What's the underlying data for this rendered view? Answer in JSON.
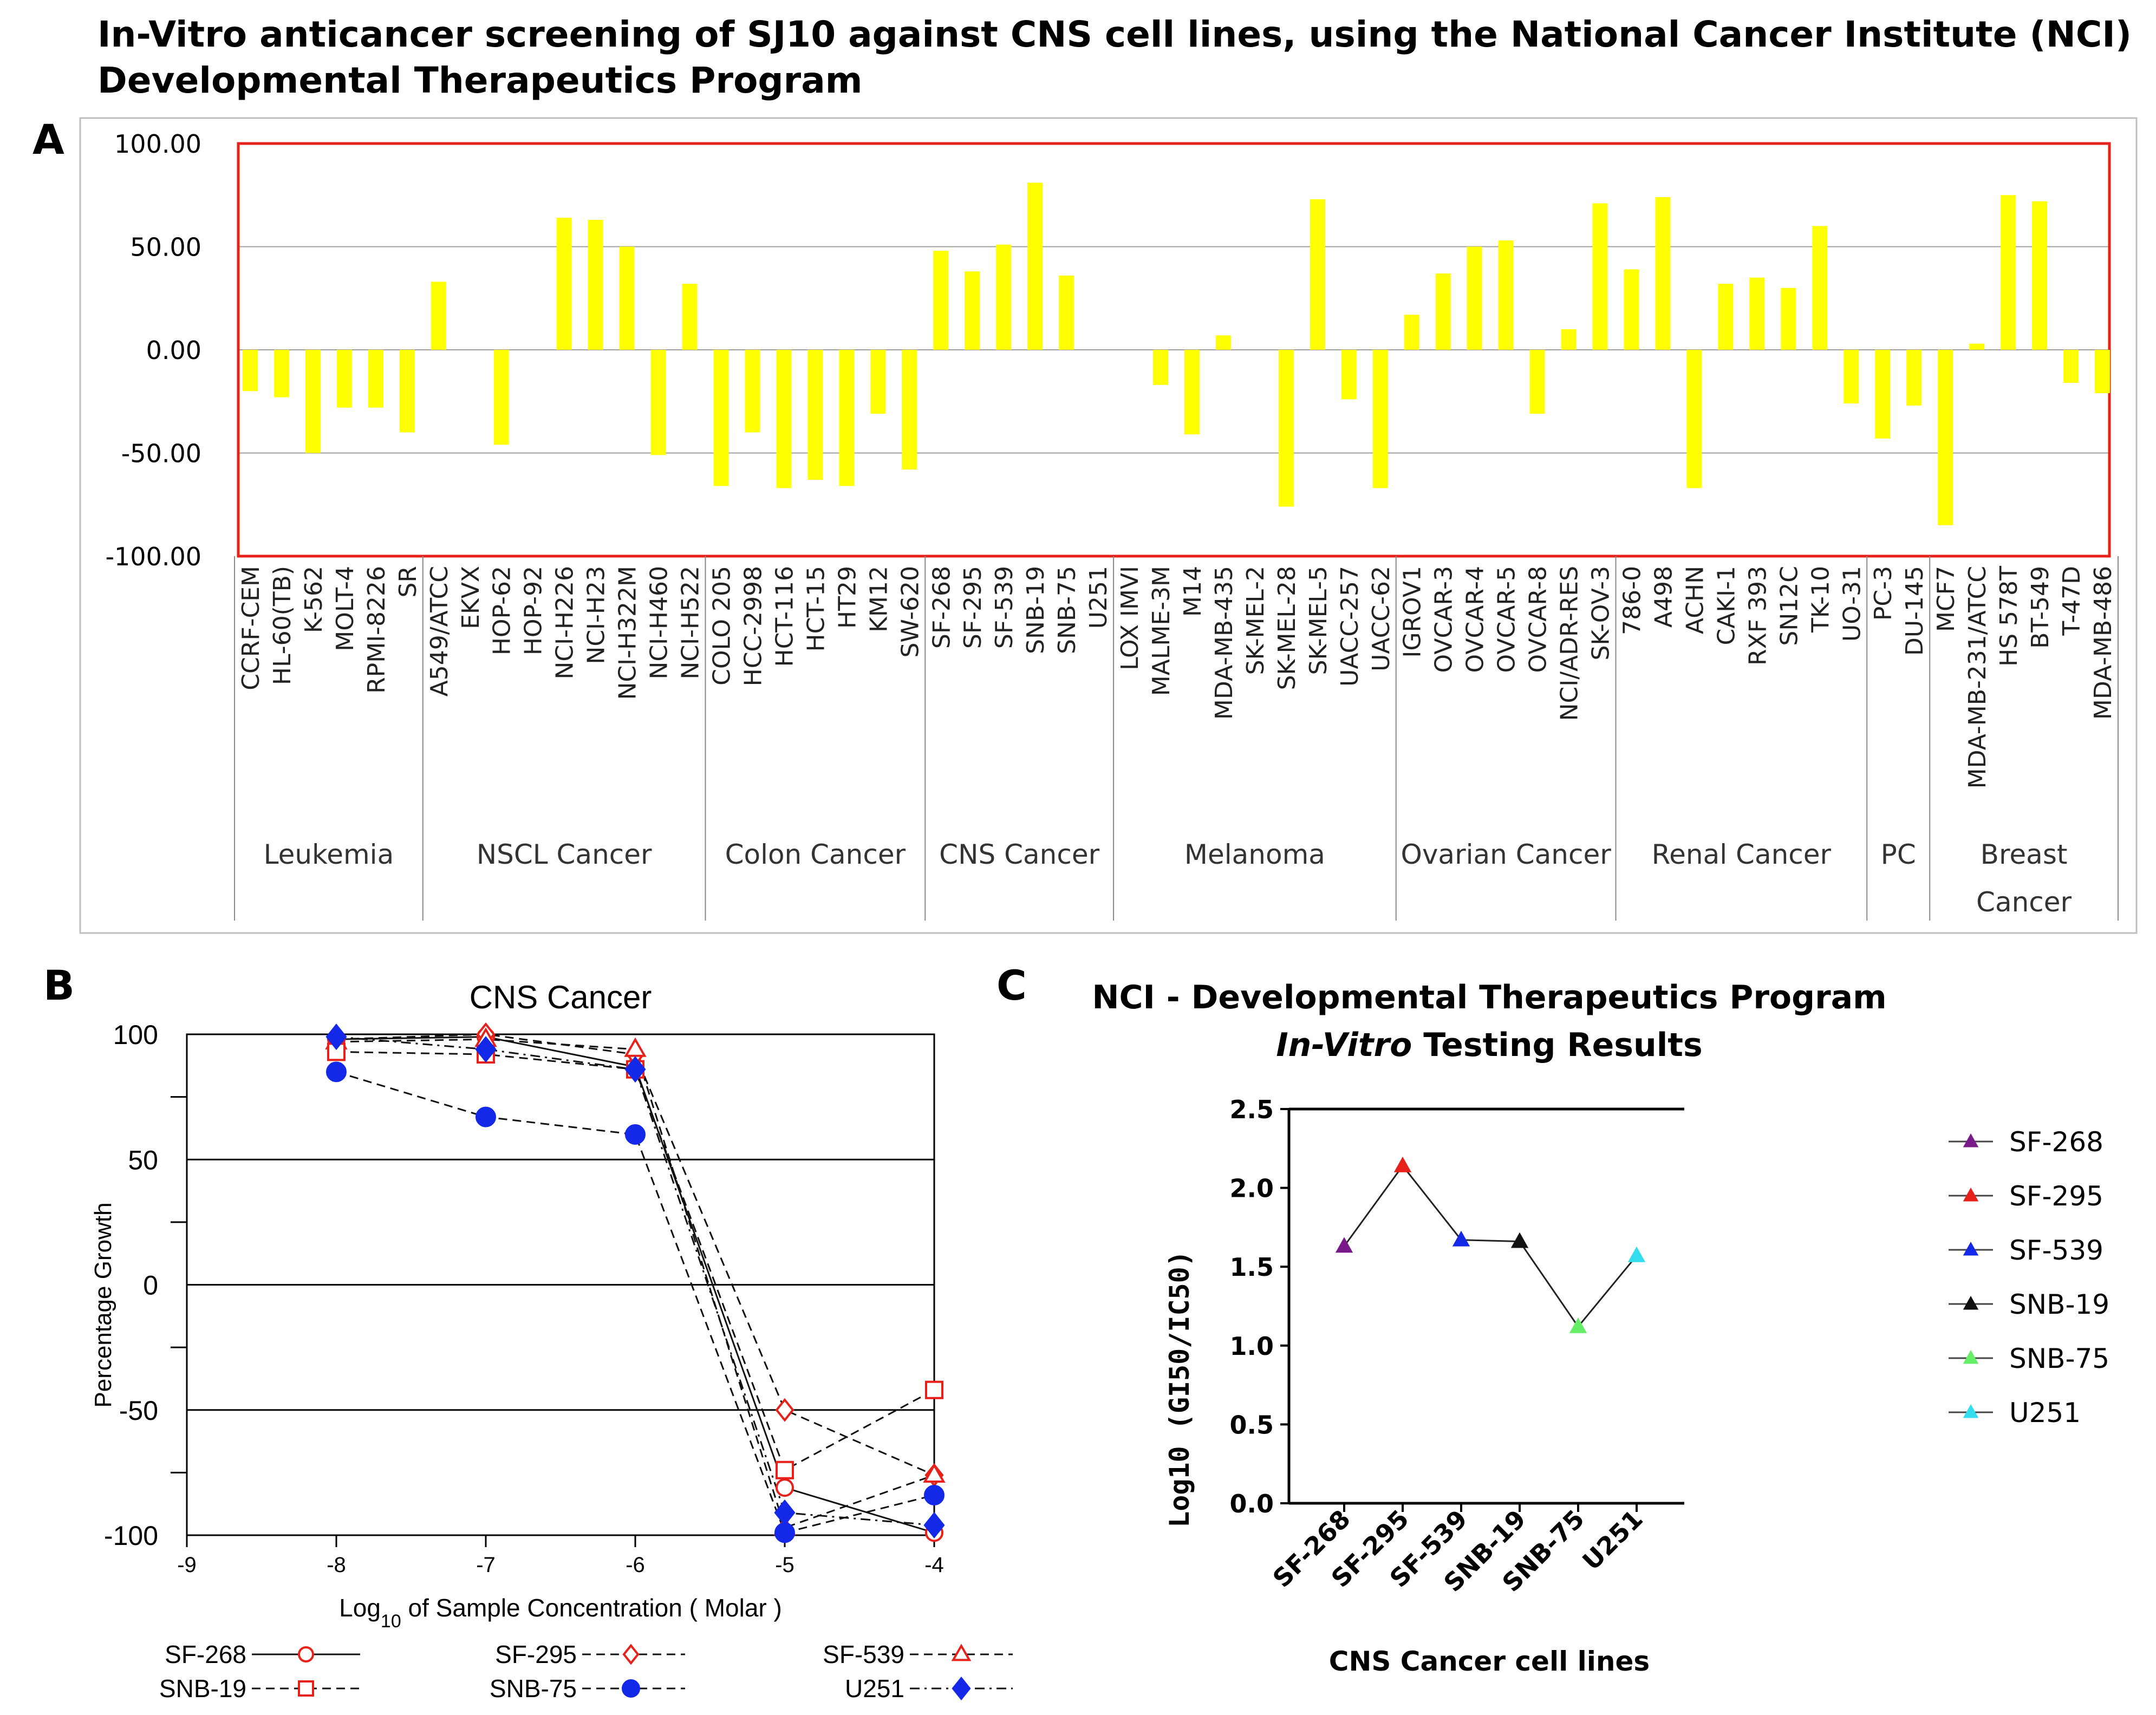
{
  "figure": {
    "title_line1": "In-Vitro anticancer screening of SJ10 against CNS cell lines, using the National Cancer Institute (NCI)",
    "title_line2": "Developmental Therapeutics Program",
    "panel_labels": [
      "A",
      "B",
      "C"
    ]
  },
  "chart_data": [
    {
      "id": "A",
      "type": "bar",
      "color": "#ffff00",
      "frame_color": "#e8201a",
      "ylim": [
        -100,
        100
      ],
      "yticks": [
        "100.00",
        "50.00",
        "0.00",
        "-50.00",
        "-100.00"
      ],
      "categories": [
        "CCRF-CEM",
        "HL-60(TB)",
        "K-562",
        "MOLT-4",
        "RPMI-8226",
        "SR",
        "A549/ATCC",
        "EKVX",
        "HOP-62",
        "HOP-92",
        "NCI-H226",
        "NCI-H23",
        "NCI-H322M",
        "NCI-H460",
        "NCI-H522",
        "COLO 205",
        "HCC-2998",
        "HCT-116",
        "HCT-15",
        "HT29",
        "KM12",
        "SW-620",
        "SF-268",
        "SF-295",
        "SF-539",
        "SNB-19",
        "SNB-75",
        "U251",
        "LOX IMVI",
        "MALME-3M",
        "M14",
        "MDA-MB-435",
        "SK-MEL-2",
        "SK-MEL-28",
        "SK-MEL-5",
        "UACC-257",
        "UACC-62",
        "IGROV1",
        "OVCAR-3",
        "OVCAR-4",
        "OVCAR-5",
        "OVCAR-8",
        "NCI/ADR-RES",
        "SK-OV-3",
        "786-0",
        "A498",
        "ACHN",
        "CAKI-1",
        "RXF 393",
        "SN12C",
        "TK-10",
        "UO-31",
        "PC-3",
        "DU-145",
        "MCF7",
        "MDA-MB-231/ATCC",
        "HS 578T",
        "BT-549",
        "T-47D",
        "MDA-MB-486"
      ],
      "values": [
        -20,
        -23,
        -50,
        -28,
        -28,
        -40,
        33,
        null,
        -46,
        null,
        64,
        63,
        50,
        -51,
        32,
        -66,
        -40,
        -67,
        -63,
        -66,
        -31,
        -58,
        48,
        38,
        51,
        81,
        36,
        null,
        null,
        -17,
        -41,
        7,
        null,
        -76,
        73,
        -24,
        -67,
        17,
        37,
        50,
        53,
        -31,
        10,
        71,
        39,
        74,
        -67,
        32,
        35,
        30,
        60,
        -26,
        -43,
        -27,
        -85,
        3,
        75,
        72,
        -16,
        -21
      ],
      "groups": [
        {
          "name": "Leukemia",
          "count": 6
        },
        {
          "name": "NSCL Cancer",
          "count": 9
        },
        {
          "name": "Colon Cancer",
          "count": 7
        },
        {
          "name": "CNS Cancer",
          "count": 6
        },
        {
          "name": "Melanoma",
          "count": 9
        },
        {
          "name": "Ovarian Cancer",
          "count": 7
        },
        {
          "name": "Renal Cancer",
          "count": 8
        },
        {
          "name": "PC",
          "count": 2
        },
        {
          "name": "Breast\nCancer",
          "count": 6
        }
      ]
    },
    {
      "id": "B",
      "type": "line",
      "title": "CNS Cancer",
      "xlabel": "Log10 of Sample Concentration ( Molar )",
      "xlabel_parts": [
        "Log",
        "10",
        " of Sample Concentration ( Molar )"
      ],
      "ylabel": "Percentage Growth",
      "xlim": [
        -9,
        -4
      ],
      "ylim": [
        -100,
        100
      ],
      "xticks": [
        "-9",
        "-8",
        "-7",
        "-6",
        "-5",
        "-4"
      ],
      "yticks": [
        "100",
        "50",
        "0",
        "-50",
        "-100"
      ],
      "x": [
        -8,
        -7,
        -6,
        -5,
        -4
      ],
      "series": [
        {
          "name": "SF-268",
          "values": [
            98,
            99,
            87,
            -81,
            -99
          ],
          "color": "#e8201a",
          "marker": "circle",
          "filled": false,
          "dash": "solid"
        },
        {
          "name": "SF-295",
          "values": [
            98,
            100,
            92,
            -50,
            -76
          ],
          "color": "#e8201a",
          "marker": "diamond",
          "filled": false,
          "dash": "dash"
        },
        {
          "name": "SF-539",
          "values": [
            97,
            98,
            94,
            -97,
            -76
          ],
          "color": "#e8201a",
          "marker": "triangle",
          "filled": false,
          "dash": "dash"
        },
        {
          "name": "SNB-19",
          "values": [
            93,
            92,
            86,
            -74,
            -42
          ],
          "color": "#e8201a",
          "marker": "square",
          "filled": false,
          "dash": "dash"
        },
        {
          "name": "SNB-75",
          "values": [
            85,
            67,
            60,
            -99,
            -84
          ],
          "color": "#1428e8",
          "marker": "circle",
          "filled": true,
          "dash": "dash"
        },
        {
          "name": "U251",
          "values": [
            99,
            94,
            86,
            -91,
            -96
          ],
          "color": "#1428e8",
          "marker": "diamond",
          "filled": true,
          "dash": "dashdot"
        }
      ]
    },
    {
      "id": "C",
      "type": "line",
      "title_line1": "NCI - Developmental Therapeutics Program",
      "title_line2_italic": "In-Vitro",
      "title_line2_rest": " Testing Results",
      "xlabel": "CNS Cancer cell lines",
      "ylabel": "Log10 (GI50/IC50)",
      "ylim": [
        0,
        2.5
      ],
      "yticks": [
        "2.5",
        "2.0",
        "1.5",
        "1.0",
        "0.5",
        "0.0"
      ],
      "categories": [
        "SF-268",
        "SF-295",
        "SF-539",
        "SNB-19",
        "SNB-75",
        "U251"
      ],
      "values": [
        1.63,
        2.14,
        1.67,
        1.66,
        1.12,
        1.57
      ],
      "colors": [
        "#7a1a8a",
        "#e8201a",
        "#1428e8",
        "#111111",
        "#66ee66",
        "#33ddee"
      ]
    }
  ]
}
